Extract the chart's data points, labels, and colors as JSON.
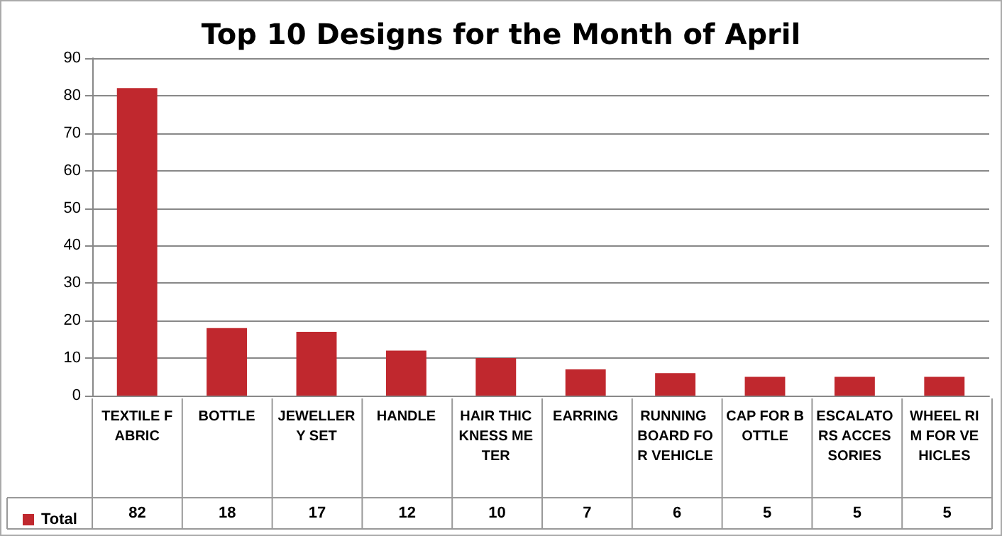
{
  "chart_data": {
    "type": "bar",
    "title": "Top 10 Designs for the Month of April",
    "categories": [
      "TEXTILE FABRIC",
      "BOTTLE",
      "JEWELLERY SET",
      "HANDLE",
      "HAIR THICKNESS METER",
      "EARRING",
      "RUNNING BOARD FOR VEHICLE",
      "CAP FOR BOTTLE",
      "ESCALATORS ACCESSORIES",
      "WHEEL RIM FOR VEHICLES"
    ],
    "series": [
      {
        "name": "Total",
        "color": "#c0282e",
        "values": [
          82,
          18,
          17,
          12,
          10,
          7,
          6,
          5,
          5,
          5
        ]
      }
    ],
    "ylim": [
      0,
      90
    ],
    "yticks": [
      0,
      10,
      20,
      30,
      40,
      50,
      60,
      70,
      80,
      90
    ],
    "grid": "y",
    "legend": "bottom left",
    "data_labels": true
  }
}
